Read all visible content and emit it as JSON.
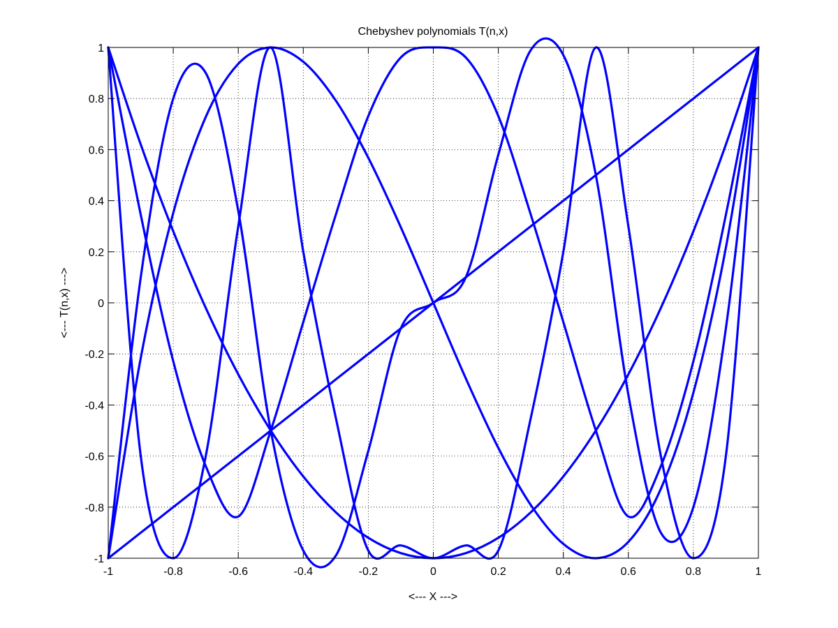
{
  "colors": {
    "background": "#ffffff",
    "axes": "#000000",
    "grid": "#000000",
    "series": "#0000ff"
  },
  "chart_data": {
    "type": "line",
    "title": "Chebyshev polynomials T(n,x)",
    "xlabel": "<--- X --->",
    "ylabel": "<--- T(n,x) --->",
    "xlim": [
      -1,
      1
    ],
    "ylim": [
      -1,
      1
    ],
    "grid": true,
    "grid_style": "dotted",
    "legend": "none",
    "xticks": [
      -1,
      -0.8,
      -0.6,
      -0.4,
      -0.2,
      0,
      0.2,
      0.4,
      0.6,
      0.8,
      1
    ],
    "xtick_labels": [
      "-1",
      "-0.8",
      "-0.6",
      "-0.4",
      "-0.2",
      "0",
      "0.2",
      "0.4",
      "0.6",
      "0.8",
      "1"
    ],
    "yticks": [
      -1,
      -0.8,
      -0.6,
      -0.4,
      -0.2,
      0,
      0.2,
      0.4,
      0.6,
      0.8,
      1
    ],
    "ytick_labels": [
      "-1",
      "-0.8",
      "-0.6",
      "-0.4",
      "-0.2",
      "0",
      "0.2",
      "0.4",
      "0.6",
      "0.8",
      "1"
    ],
    "x": [
      -1,
      -0.9,
      -0.8,
      -0.7,
      -0.6,
      -0.5,
      -0.4,
      -0.3,
      -0.2,
      -0.1,
      0,
      0.1,
      0.2,
      0.3,
      0.4,
      0.5,
      0.6,
      0.7,
      0.8,
      0.9,
      1
    ],
    "series": [
      {
        "values": [
          -1,
          -0.9,
          -0.8,
          -0.7,
          -0.6,
          -0.5,
          -0.4,
          -0.3,
          -0.2,
          -0.1,
          0,
          0.1,
          0.2,
          0.3,
          0.4,
          0.5,
          0.6,
          0.7,
          0.8,
          0.9,
          1
        ]
      },
      {
        "values": [
          1,
          0.62,
          0.28,
          -0.02,
          -0.28,
          -0.5,
          -0.68,
          -0.82,
          -0.92,
          -0.98,
          -1,
          -0.98,
          -0.92,
          -0.82,
          -0.68,
          -0.5,
          -0.28,
          -0.02,
          0.28,
          0.62,
          1
        ]
      },
      {
        "values": [
          -1,
          -0.216,
          0.352,
          0.728,
          0.936,
          1,
          0.944,
          0.792,
          0.568,
          0.296,
          0,
          -0.296,
          -0.568,
          -0.792,
          -0.944,
          -1,
          -0.936,
          -0.728,
          -0.352,
          0.216,
          1
        ]
      },
      {
        "values": [
          1,
          0.3448,
          -0.2288,
          -0.6392,
          -0.8368,
          -0.5,
          -0.0752,
          0.3448,
          0.7312,
          0.9608,
          1,
          0.9608,
          0.7312,
          0.3448,
          -0.0752,
          -0.5,
          -0.8368,
          -0.6392,
          -0.2288,
          0.3448,
          1
        ]
      },
      {
        "values": [
          -1,
          0.1,
          0.8,
          0.9,
          0.36,
          -0.5,
          -0.97,
          -0.99,
          -0.58,
          -0.1,
          0,
          0.1,
          0.58,
          0.99,
          0.97,
          0.5,
          -0.36,
          -0.9,
          -0.8,
          -0.1,
          1
        ]
      },
      {
        "values": [
          1,
          -0.6,
          -1,
          -0.6,
          0.3,
          1,
          0.2,
          -0.45,
          -0.97,
          -0.95,
          -1,
          -0.95,
          -0.97,
          -0.45,
          0.2,
          1,
          0.3,
          -0.6,
          -1,
          -0.6,
          1
        ]
      }
    ]
  }
}
